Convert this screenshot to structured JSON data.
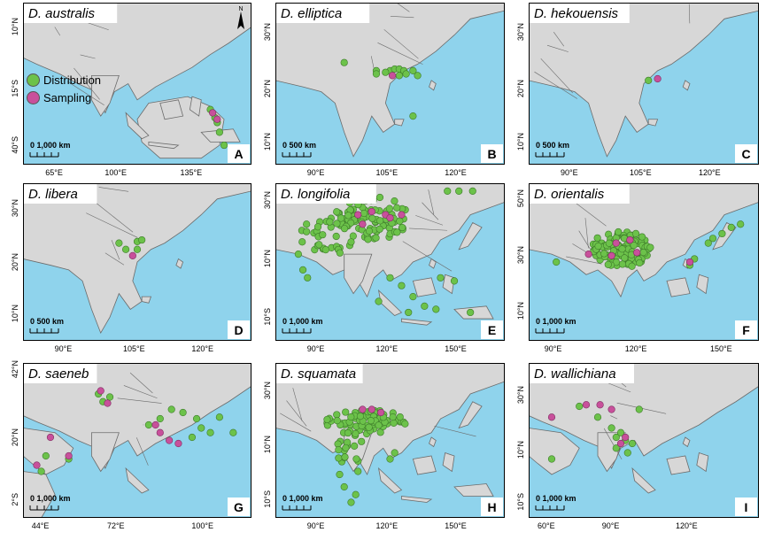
{
  "legend": {
    "items": [
      {
        "label": "Distribution",
        "color": "#6cc24a"
      },
      {
        "label": "Sampling",
        "color": "#c8509b"
      }
    ]
  },
  "colors": {
    "ocean": "#8fd3ec",
    "land": "#d7d7d7",
    "border": "#6b6b6b",
    "distribution": "#6cc24a",
    "sampling": "#c8509b"
  },
  "compass": {
    "label": "N",
    "icon": "north-arrow-icon"
  },
  "panels": [
    {
      "id": "A",
      "species": "D. australis",
      "letter": "A",
      "scale": "1,000 km",
      "xticks": [
        "65°E",
        "100°E",
        "135°E"
      ],
      "yticks": [
        "10°N",
        "15°S",
        "40°S"
      ]
    },
    {
      "id": "B",
      "species": "D. elliptica",
      "letter": "B",
      "scale": "500 km",
      "xticks": [
        "90°E",
        "105°E",
        "120°E"
      ],
      "yticks": [
        "30°N",
        "20°N",
        "10°N"
      ]
    },
    {
      "id": "C",
      "species": "D. hekouensis",
      "letter": "C",
      "scale": "500 km",
      "xticks": [
        "90°E",
        "105°E",
        "120°E"
      ],
      "yticks": [
        "30°N",
        "20°N",
        "10°N"
      ]
    },
    {
      "id": "D",
      "species": "D. libera",
      "letter": "D",
      "scale": "500 km",
      "xticks": [
        "90°E",
        "105°E",
        "120°E"
      ],
      "yticks": [
        "30°N",
        "20°N",
        "10°N"
      ]
    },
    {
      "id": "E",
      "species": "D. longifolia",
      "letter": "E",
      "scale": "1,000 km",
      "xticks": [
        "90°E",
        "120°E",
        "150°E"
      ],
      "yticks": [
        "30°N",
        "10°N",
        "10°S"
      ]
    },
    {
      "id": "F",
      "species": "D. orientalis",
      "letter": "F",
      "scale": "1,000 km",
      "xticks": [
        "90°E",
        "120°E",
        "150°E"
      ],
      "yticks": [
        "50°N",
        "30°N",
        "10°N"
      ]
    },
    {
      "id": "G",
      "species": "D. saeneb",
      "letter": "G",
      "scale": "1,000 km",
      "xticks": [
        "44°E",
        "72°E",
        "100°E"
      ],
      "yticks": [
        "42°N",
        "20°N",
        "2°S"
      ]
    },
    {
      "id": "H",
      "species": "D. squamata",
      "letter": "H",
      "scale": "1,000 km",
      "xticks": [
        "90°E",
        "120°E",
        "150°E"
      ],
      "yticks": [
        "30°N",
        "10°N",
        "10°S"
      ]
    },
    {
      "id": "I",
      "species": "D. wallichiana",
      "letter": "I",
      "scale": "1,000 km",
      "xticks": [
        "60°E",
        "90°E",
        "120°E"
      ],
      "yticks": [
        "30°N",
        "10°N",
        "10°S"
      ]
    }
  ]
}
